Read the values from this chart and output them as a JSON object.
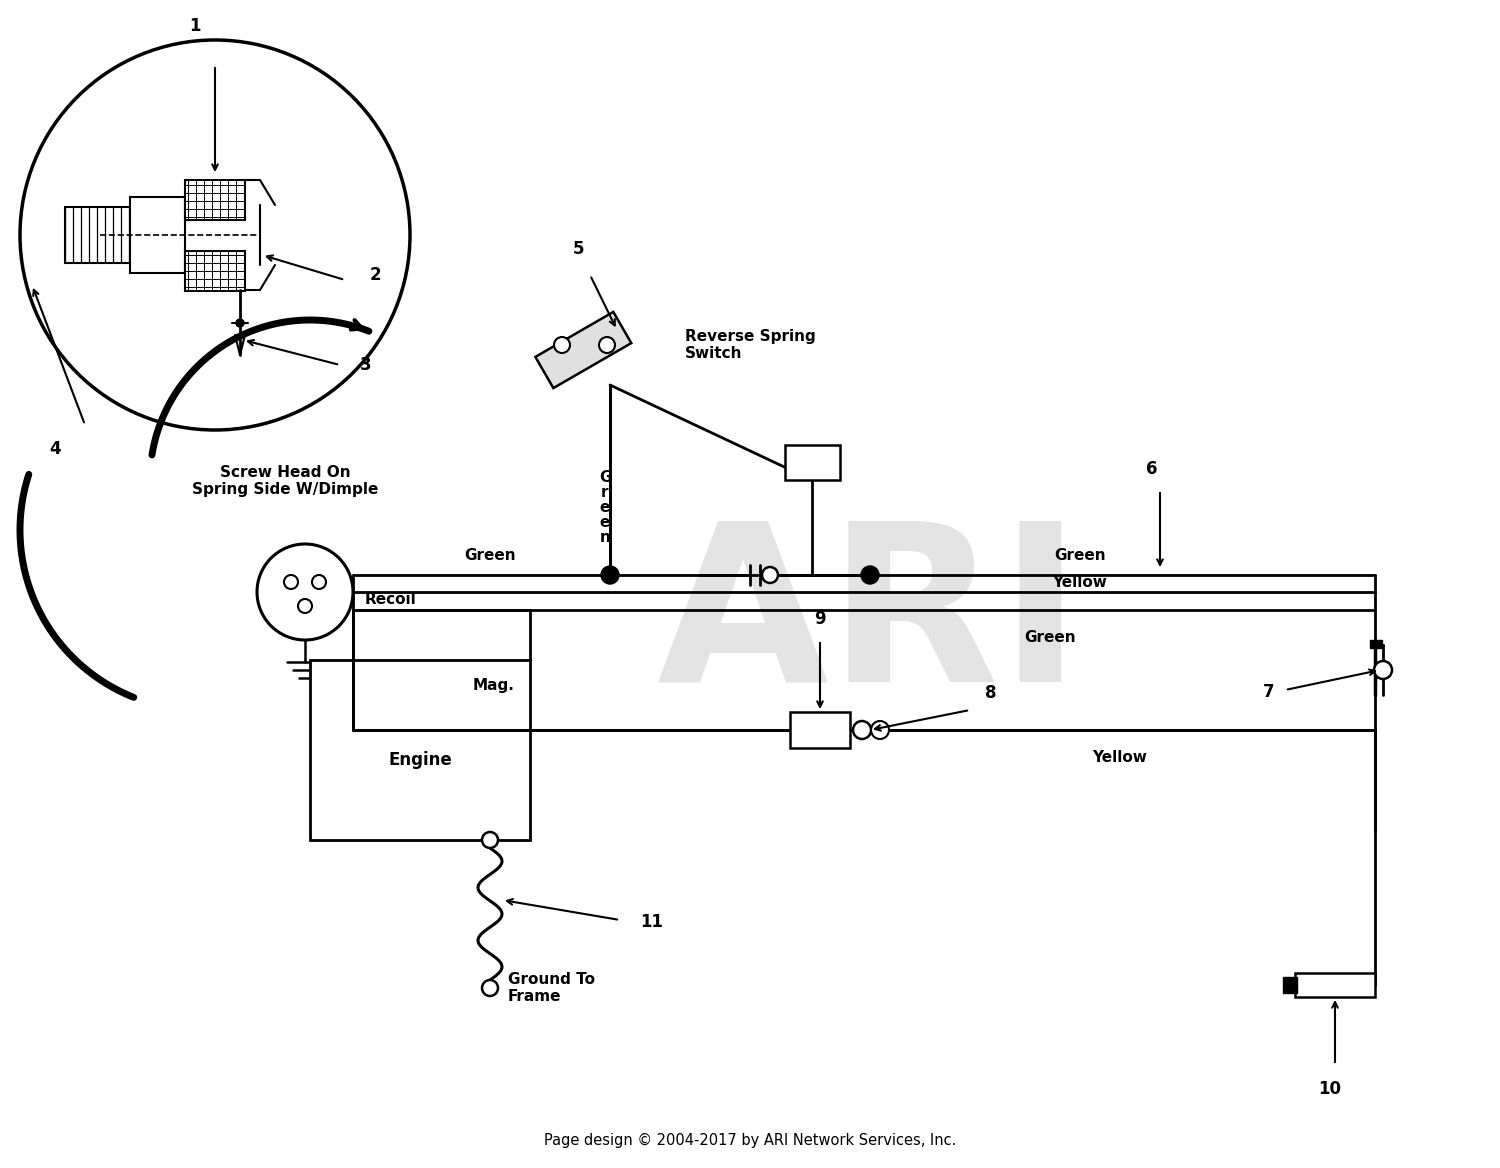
{
  "footer": "Page design © 2004-2017 by ARI Network Services, Inc.",
  "bg_color": "#ffffff",
  "annotation_screw": "Screw Head On\nSpring Side W/Dimple",
  "annotation_recoil": "Recoil",
  "annotation_reverse_spring": "Reverse Spring\nSwitch",
  "annotation_green_label1": "Green",
  "annotation_green_label2": "Green",
  "annotation_yellow_label1": "Yellow",
  "annotation_yellow_label2": "Yellow",
  "annotation_green_label3": "Green",
  "annotation_mag": "Mag.",
  "annotation_engine": "Engine",
  "annotation_ground": "Ground To\nFrame",
  "annotation_green_vert": "G\nr\ne\ne\nn",
  "watermark_color": "#c8c8c8",
  "watermark_alpha": 0.5,
  "lw_main": 2.0,
  "lw_thick": 4.0
}
